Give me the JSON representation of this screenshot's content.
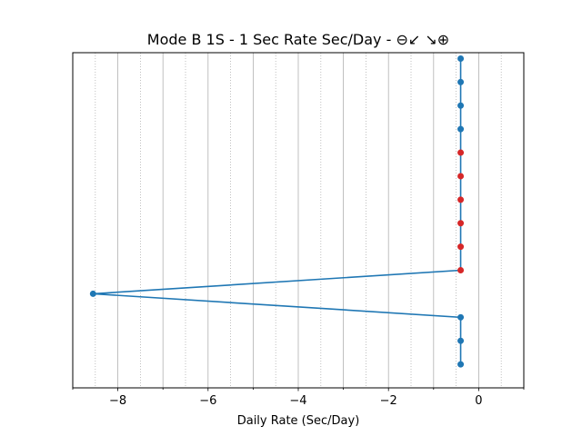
{
  "chart_data": {
    "type": "line",
    "title": "Mode B 1S - 1 Sec Rate Sec/Day - ⊖↙ ↘⊕",
    "xlabel": "Daily Rate (Sec/Day)",
    "ylabel": "",
    "xlim": [
      -9,
      1
    ],
    "ylim": [
      0,
      14.25
    ],
    "x_ticks": [
      -8,
      -6,
      -4,
      -2,
      0
    ],
    "x_tick_labels": [
      "−8",
      "−6",
      "−4",
      "−2",
      "0"
    ],
    "major_grid": true,
    "minor_grid_dotted": true,
    "y_ticks_visible": false,
    "colors": {
      "line": "#1f77b4",
      "normal_point": "#1f77b4",
      "highlight_point": "#d62728"
    },
    "series": [
      {
        "points": [
          {
            "x": -0.4,
            "y": 1,
            "highlight": false
          },
          {
            "x": -0.4,
            "y": 2,
            "highlight": false
          },
          {
            "x": -0.4,
            "y": 3,
            "highlight": false
          },
          {
            "x": -8.55,
            "y": 4,
            "highlight": false
          },
          {
            "x": -0.4,
            "y": 5,
            "highlight": true
          },
          {
            "x": -0.4,
            "y": 6,
            "highlight": true
          },
          {
            "x": -0.4,
            "y": 7,
            "highlight": true
          },
          {
            "x": -0.4,
            "y": 8,
            "highlight": true
          },
          {
            "x": -0.4,
            "y": 9,
            "highlight": true
          },
          {
            "x": -0.4,
            "y": 10,
            "highlight": true
          },
          {
            "x": -0.4,
            "y": 11,
            "highlight": false
          },
          {
            "x": -0.4,
            "y": 12,
            "highlight": false
          },
          {
            "x": -0.4,
            "y": 13,
            "highlight": false
          },
          {
            "x": -0.4,
            "y": 14,
            "highlight": false
          }
        ]
      }
    ]
  }
}
